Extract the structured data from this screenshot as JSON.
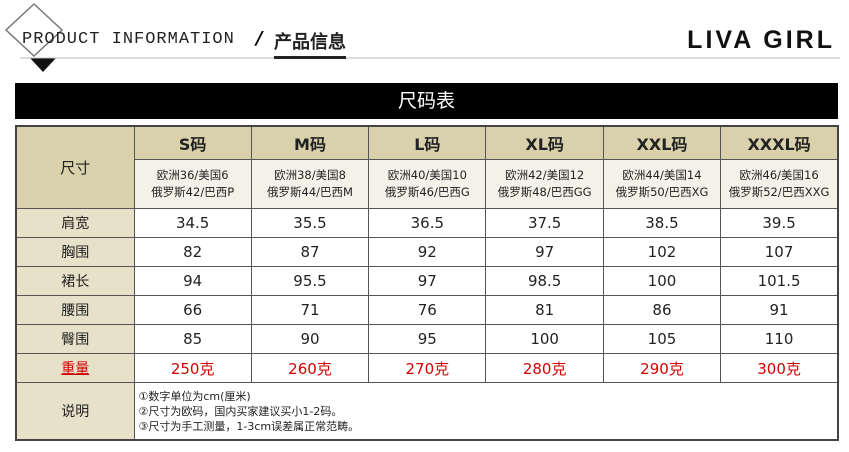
{
  "header": {
    "title_en": "PRODUCT INFORMATION",
    "separator": "/",
    "title_cn": "产品信息",
    "brand": "LIVA GIRL"
  },
  "table": {
    "caption": "尺码表",
    "corner": "尺寸",
    "sizes": [
      "S码",
      "M码",
      "L码",
      "XL码",
      "XXL码",
      "XXXL码"
    ],
    "regions": [
      [
        "欧洲36/美国6",
        "俄罗斯42/巴西P"
      ],
      [
        "欧洲38/美国8",
        "俄罗斯44/巴西M"
      ],
      [
        "欧洲40/美国10",
        "俄罗斯46/巴西G"
      ],
      [
        "欧洲42/美国12",
        "俄罗斯48/巴西GG"
      ],
      [
        "欧洲44/美国14",
        "俄罗斯50/巴西XG"
      ],
      [
        "欧洲46/美国16",
        "俄罗斯52/巴西XXG"
      ]
    ],
    "rows": [
      {
        "label": "肩宽",
        "values": [
          34.5,
          35.5,
          36.5,
          37.5,
          38.5,
          39.5
        ]
      },
      {
        "label": "胸围",
        "values": [
          82,
          87,
          92,
          97,
          102,
          107
        ]
      },
      {
        "label": "裙长",
        "values": [
          94,
          95.5,
          97,
          98.5,
          100,
          101.5
        ]
      },
      {
        "label": "腰围",
        "values": [
          66,
          71,
          76,
          81,
          86,
          91
        ]
      },
      {
        "label": "臀围",
        "values": [
          85,
          90,
          95,
          100,
          105,
          110
        ]
      }
    ],
    "weight": {
      "label": "重量",
      "values": [
        "250克",
        "260克",
        "270克",
        "280克",
        "290克",
        "300克"
      ]
    },
    "notes": {
      "label": "说明",
      "lines": [
        "①数字单位为cm(厘米)",
        "②尺寸为欧码，国内买家建议买小1-2码。",
        "③尺寸为手工测量，1-3cm误差属正常范畴。"
      ]
    }
  }
}
